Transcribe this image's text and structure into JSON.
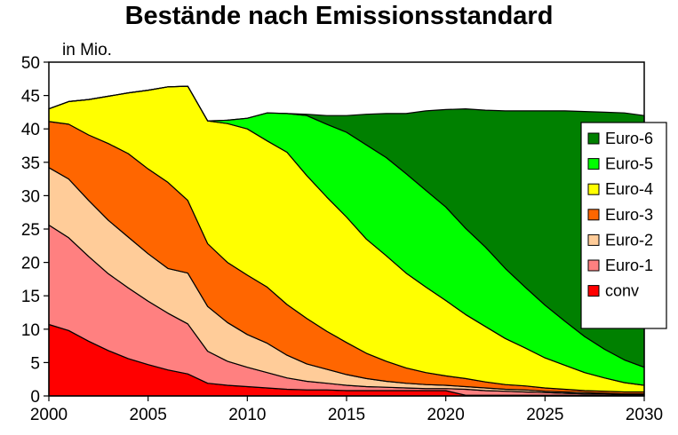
{
  "chart_data": {
    "type": "area",
    "stacked": true,
    "title": "Bestände nach Emissionsstandard",
    "unit_label": "in Mio.",
    "xlabel": "",
    "ylabel": "",
    "xlim": [
      2000,
      2030
    ],
    "ylim": [
      0,
      50
    ],
    "x_ticks": [
      2000,
      2005,
      2010,
      2015,
      2020,
      2025,
      2030
    ],
    "y_ticks": [
      0,
      5,
      10,
      15,
      20,
      25,
      30,
      35,
      40,
      45,
      50
    ],
    "grid": {
      "horizontal": false,
      "vertical": false
    },
    "legend_position": "right",
    "x": [
      2000,
      2001,
      2002,
      2003,
      2004,
      2005,
      2006,
      2007,
      2008,
      2009,
      2010,
      2011,
      2012,
      2013,
      2014,
      2015,
      2016,
      2017,
      2018,
      2019,
      2020,
      2021,
      2022,
      2023,
      2024,
      2025,
      2026,
      2027,
      2028,
      2029,
      2030
    ],
    "series": [
      {
        "name": "conv",
        "color": "#ff0000",
        "values": [
          10.7,
          9.8,
          8.2,
          6.8,
          5.6,
          4.7,
          3.9,
          3.3,
          1.9,
          1.6,
          1.4,
          1.2,
          1.0,
          0.9,
          0.9,
          0.8,
          0.8,
          0.8,
          0.8,
          0.8,
          0.8,
          0.1,
          0.1,
          0.1,
          0.1,
          0.1,
          0.1,
          0.1,
          0.1,
          0.1,
          0.1
        ]
      },
      {
        "name": "Euro-1",
        "color": "#ff8080",
        "values": [
          14.9,
          13.9,
          12.7,
          11.5,
          10.6,
          9.5,
          8.5,
          7.5,
          4.8,
          3.6,
          2.9,
          2.3,
          1.7,
          1.3,
          1.0,
          0.8,
          0.6,
          0.5,
          0.4,
          0.3,
          0.3,
          0.9,
          0.7,
          0.6,
          0.5,
          0.4,
          0.3,
          0.2,
          0.2,
          0.1,
          0.1
        ]
      },
      {
        "name": "Euro-2",
        "color": "#ffcc99",
        "values": [
          8.6,
          8.8,
          8.4,
          8.0,
          7.6,
          7.1,
          6.7,
          7.6,
          6.7,
          5.8,
          4.9,
          4.4,
          3.4,
          2.6,
          2.1,
          1.6,
          1.2,
          0.9,
          0.7,
          0.6,
          0.5,
          0.4,
          0.4,
          0.3,
          0.3,
          0.2,
          0.2,
          0.2,
          0.1,
          0.1,
          0.1
        ]
      },
      {
        "name": "Euro-3",
        "color": "#ff6600",
        "values": [
          6.9,
          8.2,
          9.8,
          11.5,
          12.5,
          12.7,
          12.9,
          10.9,
          9.4,
          9.0,
          8.9,
          8.4,
          7.6,
          6.8,
          5.7,
          4.8,
          3.8,
          3.0,
          2.3,
          1.8,
          1.4,
          1.2,
          0.9,
          0.7,
          0.6,
          0.5,
          0.4,
          0.3,
          0.3,
          0.3,
          0.3
        ]
      },
      {
        "name": "Euro-4",
        "color": "#ffff00",
        "values": [
          1.9,
          3.4,
          5.3,
          7.1,
          9.1,
          11.8,
          14.3,
          17.1,
          18.4,
          20.8,
          21.9,
          21.9,
          22.8,
          21.4,
          20.1,
          18.8,
          17.1,
          15.8,
          14.2,
          12.8,
          11.3,
          9.6,
          8.3,
          6.9,
          5.7,
          4.5,
          3.6,
          2.7,
          2.0,
          1.4,
          1.0
        ]
      },
      {
        "name": "Euro-5",
        "color": "#00ff00",
        "values": [
          0,
          0,
          0,
          0,
          0,
          0,
          0,
          0,
          0,
          0.5,
          1.6,
          4.2,
          5.8,
          9.0,
          10.9,
          12.7,
          14.1,
          14.7,
          14.9,
          14.5,
          14.0,
          12.9,
          11.9,
          10.5,
          9.1,
          7.9,
          6.6,
          5.4,
          4.3,
          3.4,
          2.7
        ]
      },
      {
        "name": "Euro-6",
        "color": "#008000",
        "values": [
          0,
          0,
          0,
          0,
          0,
          0,
          0,
          0,
          0,
          0,
          0,
          0,
          0,
          0.2,
          1.3,
          2.5,
          4.6,
          6.6,
          9.0,
          11.9,
          14.6,
          17.9,
          20.5,
          23.6,
          26.4,
          29.1,
          31.5,
          33.7,
          35.5,
          37.0,
          37.7
        ]
      }
    ]
  }
}
